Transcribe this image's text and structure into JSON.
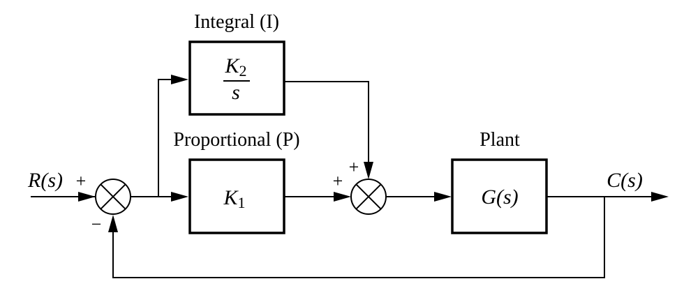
{
  "blocks": {
    "integral": {
      "title": "Integral (I)",
      "numerator": "K",
      "numerator_subscript": "2",
      "denominator": "s"
    },
    "proportional": {
      "title": "Proportional (P)",
      "gain": "K",
      "gain_subscript": "1"
    },
    "plant": {
      "title": "Plant",
      "transfer_function": "G(s)"
    }
  },
  "signals": {
    "input": "R(s)",
    "output": "C(s)"
  },
  "junctions": {
    "error": {
      "plus_sign": "+",
      "minus_sign": "−"
    },
    "sum": {
      "top_sign": "+",
      "left_sign": "+"
    }
  }
}
